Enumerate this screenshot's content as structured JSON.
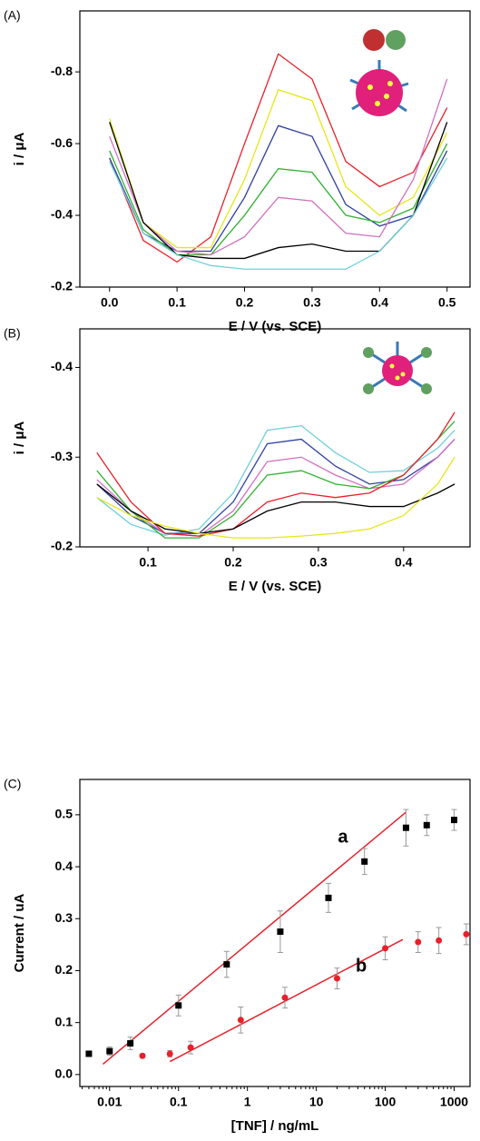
{
  "chart_data": [
    {
      "type": "line",
      "panel_label": "(A)",
      "xlabel": "E / V (vs. SCE)",
      "ylabel": "i / μA",
      "x": [
        0,
        0.05,
        0.1,
        0.15,
        0.2,
        0.25,
        0.3,
        0.35,
        0.4,
        0.45,
        0.5
      ],
      "xlim": [
        -0.044,
        0.534
      ],
      "xticks": [
        {
          "value": 0,
          "label": "0.0"
        },
        0.1,
        0.2,
        0.3,
        0.4,
        0.5
      ],
      "ylim": [
        -0.2,
        -0.97
      ],
      "yticks": [
        -0.2,
        -0.4,
        -0.6,
        -0.8
      ],
      "series": [
        {
          "color": "#e8202a",
          "values": [
            -0.56,
            -0.33,
            -0.27,
            -0.34,
            -0.6,
            -0.85,
            -0.78,
            -0.55,
            -0.48,
            -0.52,
            -0.7
          ]
        },
        {
          "color": "#e6e61a",
          "values": [
            -0.67,
            -0.38,
            -0.31,
            -0.31,
            -0.5,
            -0.75,
            -0.72,
            -0.48,
            -0.4,
            -0.45,
            -0.63
          ]
        },
        {
          "color": "#3040a0",
          "values": [
            -0.56,
            -0.35,
            -0.3,
            -0.3,
            -0.45,
            -0.65,
            -0.62,
            -0.43,
            -0.37,
            -0.4,
            -0.58
          ]
        },
        {
          "color": "#30b030",
          "values": [
            -0.58,
            -0.36,
            -0.29,
            -0.29,
            -0.4,
            -0.53,
            -0.52,
            -0.4,
            -0.38,
            -0.42,
            -0.6
          ]
        },
        {
          "color": "#d070c0",
          "values": [
            -0.62,
            -0.38,
            -0.3,
            -0.29,
            -0.34,
            -0.45,
            -0.44,
            -0.35,
            -0.34,
            -0.5,
            -0.78
          ]
        },
        {
          "color": "#000000",
          "values": [
            -0.66,
            -0.38,
            -0.29,
            -0.28,
            -0.28,
            -0.31,
            -0.32,
            -0.3,
            -0.3,
            -0.4,
            -0.66
          ]
        },
        {
          "color": "#70d0d8",
          "values": [
            -0.55,
            -0.35,
            -0.29,
            -0.26,
            -0.25,
            -0.25,
            -0.25,
            -0.25,
            -0.3,
            -0.4,
            -0.56
          ]
        }
      ]
    },
    {
      "type": "line",
      "panel_label": "(B)",
      "xlabel": "E / V (vs. SCE)",
      "ylabel": "i / μA",
      "x": [
        0.04,
        0.08,
        0.12,
        0.16,
        0.2,
        0.24,
        0.28,
        0.32,
        0.36,
        0.4,
        0.44,
        0.46
      ],
      "xlim": [
        0.02,
        0.478
      ],
      "xticks": [
        0.1,
        0.2,
        0.3,
        0.4
      ],
      "ylim": [
        -0.2,
        -0.443
      ],
      "yticks": [
        -0.2,
        -0.3,
        -0.4
      ],
      "series": [
        {
          "color": "#70d0d8",
          "values": [
            -0.255,
            -0.225,
            -0.213,
            -0.22,
            -0.26,
            -0.33,
            -0.335,
            -0.305,
            -0.283,
            -0.285,
            -0.31,
            -0.33
          ]
        },
        {
          "color": "#3040a0",
          "values": [
            -0.27,
            -0.235,
            -0.215,
            -0.215,
            -0.25,
            -0.315,
            -0.32,
            -0.29,
            -0.27,
            -0.275,
            -0.3,
            -0.32
          ]
        },
        {
          "color": "#d070c0",
          "values": [
            -0.275,
            -0.24,
            -0.215,
            -0.212,
            -0.24,
            -0.295,
            -0.3,
            -0.28,
            -0.265,
            -0.27,
            -0.3,
            -0.32
          ]
        },
        {
          "color": "#30b030",
          "values": [
            -0.285,
            -0.24,
            -0.21,
            -0.21,
            -0.235,
            -0.28,
            -0.285,
            -0.27,
            -0.265,
            -0.28,
            -0.32,
            -0.34
          ]
        },
        {
          "color": "#e8202a",
          "values": [
            -0.305,
            -0.25,
            -0.215,
            -0.212,
            -0.22,
            -0.25,
            -0.26,
            -0.255,
            -0.26,
            -0.28,
            -0.32,
            -0.35
          ]
        },
        {
          "color": "#000000",
          "values": [
            -0.27,
            -0.24,
            -0.22,
            -0.215,
            -0.22,
            -0.24,
            -0.25,
            -0.25,
            -0.245,
            -0.245,
            -0.26,
            -0.27
          ]
        },
        {
          "color": "#e6e61a",
          "values": [
            -0.255,
            -0.235,
            -0.223,
            -0.215,
            -0.21,
            -0.21,
            -0.212,
            -0.215,
            -0.22,
            -0.235,
            -0.27,
            -0.3
          ]
        }
      ]
    },
    {
      "type": "scatter",
      "panel_label": "(C)",
      "xlabel": "[TNF] / ng/mL",
      "ylabel": "Current / uA",
      "xscale": "log",
      "xlim": [
        0.0037,
        1700
      ],
      "xticks": [
        0.01,
        0.1,
        1,
        10,
        100,
        1000
      ],
      "ylim": [
        -0.023,
        0.568
      ],
      "yticks": [
        {
          "value": 0,
          "label": "0.0"
        },
        0.1,
        0.2,
        0.3,
        0.4,
        0.5
      ],
      "series": [
        {
          "name": "a",
          "color": "#000000",
          "marker": "square",
          "x": [
            0.005,
            0.01,
            0.02,
            0.1,
            0.5,
            3,
            15,
            50,
            200,
            400,
            1000
          ],
          "values": [
            0.04,
            0.045,
            0.06,
            0.133,
            0.212,
            0.275,
            0.34,
            0.41,
            0.475,
            0.48,
            0.49
          ],
          "errors": [
            0.003,
            0.008,
            0.012,
            0.02,
            0.025,
            0.04,
            0.028,
            0.025,
            0.035,
            0.02,
            0.02
          ],
          "fit": {
            "x": [
              0.008,
              200
            ],
            "y": [
              0.02,
              0.505
            ]
          }
        },
        {
          "name": "b",
          "color": "#e8202a",
          "marker": "circle",
          "x": [
            0.03,
            0.075,
            0.15,
            0.8,
            3.5,
            20,
            100,
            300,
            600,
            1500
          ],
          "values": [
            0.036,
            0.04,
            0.052,
            0.105,
            0.148,
            0.185,
            0.243,
            0.255,
            0.258,
            0.27
          ],
          "errors": [
            0.003,
            0.006,
            0.012,
            0.025,
            0.02,
            0.02,
            0.022,
            0.02,
            0.025,
            0.02
          ],
          "fit": {
            "x": [
              0.075,
              180
            ],
            "y": [
              0.025,
              0.26
            ]
          }
        }
      ]
    }
  ]
}
